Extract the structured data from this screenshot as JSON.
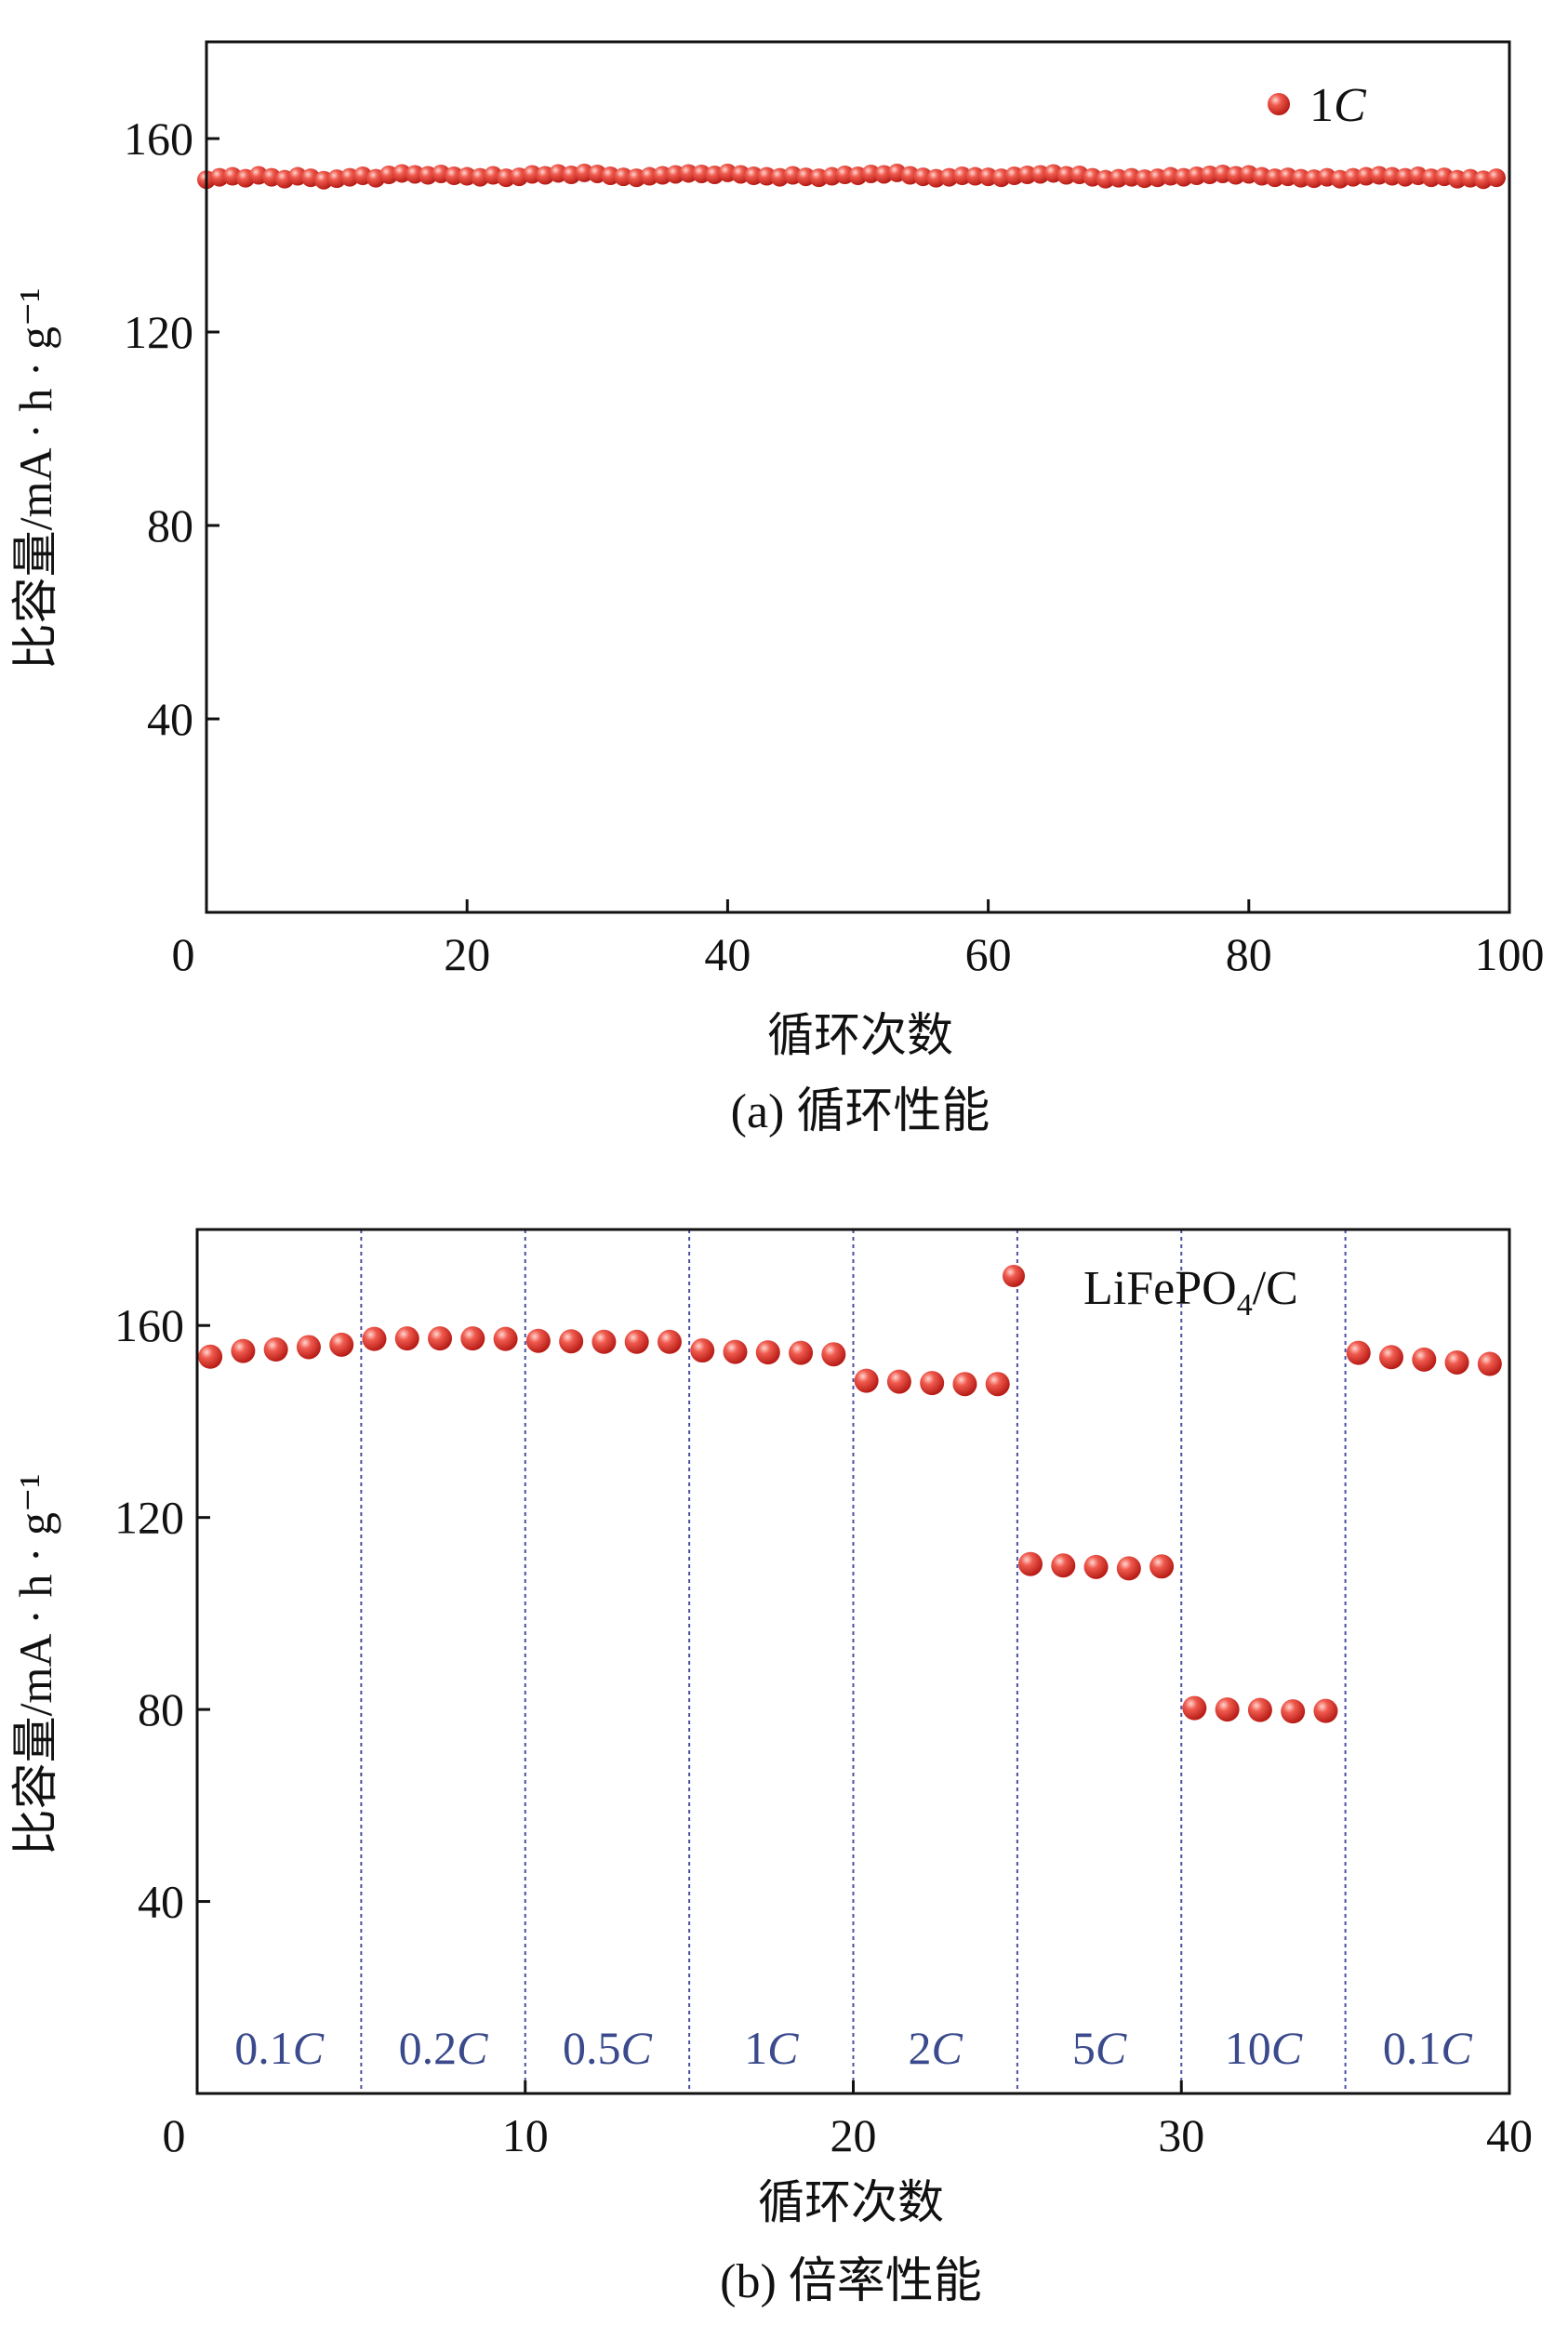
{
  "chart_data": [
    {
      "type": "scatter",
      "caption": "(a) 循环性能",
      "xlabel": "循环次数",
      "ylabel": "比容量/mA · h · g⁻¹",
      "xlim": [
        0,
        100
      ],
      "ylim": [
        0,
        180
      ],
      "xticks": [
        "0",
        "20",
        "40",
        "60",
        "80",
        "100"
      ],
      "yticks": [
        "40",
        "80",
        "120",
        "160"
      ],
      "legend_placement": "top-right",
      "marker_color": "#e53b33",
      "series": [
        {
          "name": "1C",
          "x": [
            0,
            1,
            2,
            3,
            4,
            5,
            6,
            7,
            8,
            9,
            10,
            11,
            12,
            13,
            14,
            15,
            16,
            17,
            18,
            19,
            20,
            21,
            22,
            23,
            24,
            25,
            26,
            27,
            28,
            29,
            30,
            31,
            32,
            33,
            34,
            35,
            36,
            37,
            38,
            39,
            40,
            41,
            42,
            43,
            44,
            45,
            46,
            47,
            48,
            49,
            50,
            51,
            52,
            53,
            54,
            55,
            56,
            57,
            58,
            59,
            60,
            61,
            62,
            63,
            64,
            65,
            66,
            67,
            68,
            69,
            70,
            71,
            72,
            73,
            74,
            75,
            76,
            77,
            78,
            79,
            80,
            81,
            82,
            83,
            84,
            85,
            86,
            87,
            88,
            89,
            90,
            91,
            92,
            93,
            94,
            95,
            96,
            97,
            98,
            99
          ],
          "y": [
            151.5,
            152.0,
            152.2,
            151.8,
            152.4,
            152.0,
            151.6,
            152.2,
            151.9,
            151.4,
            151.7,
            152.0,
            152.3,
            151.8,
            152.5,
            152.8,
            152.6,
            152.4,
            152.7,
            152.3,
            152.2,
            152.0,
            152.4,
            151.9,
            152.1,
            152.6,
            152.4,
            152.8,
            152.5,
            152.9,
            152.7,
            152.3,
            152.1,
            151.9,
            152.2,
            152.4,
            152.6,
            152.8,
            152.7,
            152.5,
            152.9,
            152.6,
            152.3,
            152.2,
            152.0,
            152.4,
            152.1,
            151.9,
            152.2,
            152.5,
            152.3,
            152.7,
            152.6,
            152.9,
            152.4,
            152.1,
            151.8,
            152.0,
            152.3,
            152.2,
            152.1,
            151.9,
            152.3,
            152.5,
            152.6,
            152.8,
            152.4,
            152.5,
            152.0,
            151.6,
            151.8,
            152.0,
            151.7,
            151.9,
            152.2,
            152.0,
            152.3,
            152.5,
            152.7,
            152.4,
            152.6,
            152.2,
            151.9,
            152.1,
            151.8,
            151.7,
            152.0,
            151.6,
            152.0,
            152.2,
            152.4,
            152.2,
            152.0,
            152.3,
            151.9,
            152.1,
            151.6,
            151.8,
            151.5,
            151.9
          ]
        }
      ]
    },
    {
      "type": "scatter",
      "caption": "(b) 倍率性能",
      "xlabel": "循环次数",
      "ylabel": "比容量/mA · h · g⁻¹",
      "xlim": [
        0,
        40
      ],
      "ylim": [
        0,
        180
      ],
      "xticks": [
        "0",
        "10",
        "20",
        "30",
        "40"
      ],
      "yticks": [
        "40",
        "80",
        "120",
        "160"
      ],
      "legend_placement": "top-right",
      "marker_color": "#e53b33",
      "divider_color": "#4a4fa3",
      "dividers_x": [
        5,
        10,
        15,
        20,
        25,
        30,
        35
      ],
      "rate_labels": [
        {
          "num": "0.1",
          "unit": "C",
          "x": 2.5
        },
        {
          "num": "0.2",
          "unit": "C",
          "x": 7.5
        },
        {
          "num": "0.5",
          "unit": "C",
          "x": 12.5
        },
        {
          "num": "1",
          "unit": "C",
          "x": 17.5
        },
        {
          "num": "2",
          "unit": "C",
          "x": 22.5
        },
        {
          "num": "5",
          "unit": "C",
          "x": 27.5
        },
        {
          "num": "10",
          "unit": "C",
          "x": 32.5
        },
        {
          "num": "0.1",
          "unit": "C",
          "x": 37.5
        }
      ],
      "series": [
        {
          "name": "LiFePO4/C",
          "x": [
            0.4,
            1.4,
            2.4,
            3.4,
            4.4,
            5.4,
            6.4,
            7.4,
            8.4,
            9.4,
            10.4,
            11.4,
            12.4,
            13.4,
            14.4,
            15.4,
            16.4,
            17.4,
            18.4,
            19.4,
            20.4,
            21.4,
            22.4,
            23.4,
            24.4,
            25.4,
            26.4,
            27.4,
            28.4,
            29.4,
            30.4,
            31.4,
            32.4,
            33.4,
            34.4,
            35.4,
            36.4,
            37.4,
            38.4,
            39.4
          ],
          "y": [
            153.5,
            154.7,
            155.0,
            155.5,
            156.0,
            157.2,
            157.3,
            157.3,
            157.3,
            157.2,
            156.8,
            156.7,
            156.6,
            156.6,
            156.6,
            154.8,
            154.5,
            154.4,
            154.3,
            154.0,
            148.5,
            148.3,
            148.0,
            147.8,
            147.8,
            110.3,
            110.0,
            109.7,
            109.4,
            109.8,
            80.3,
            80.0,
            79.9,
            79.6,
            79.7,
            154.3,
            153.4,
            152.9,
            152.3,
            152.0
          ]
        }
      ]
    }
  ]
}
